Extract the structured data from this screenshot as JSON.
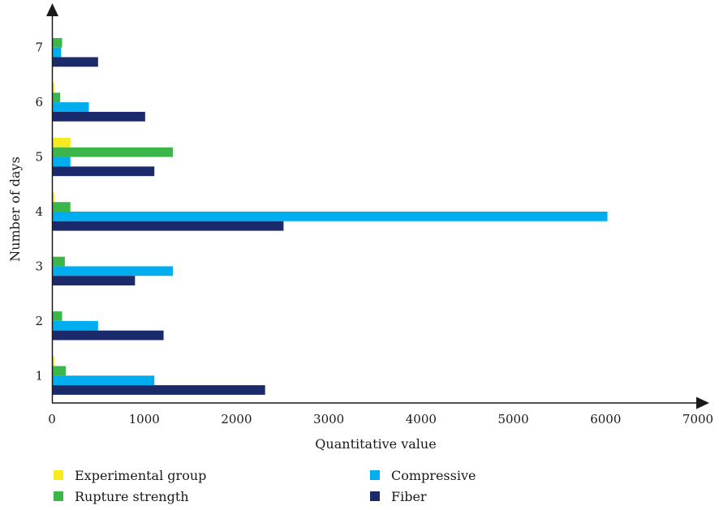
{
  "chart_data": {
    "type": "bar",
    "orientation": "horizontal",
    "categories": [
      "1",
      "2",
      "3",
      "4",
      "5",
      "6",
      "7"
    ],
    "series": [
      {
        "name": "Experimental group",
        "color": "#f7ea1f",
        "values": [
          25,
          0,
          0,
          25,
          200,
          25,
          0
        ]
      },
      {
        "name": "Rupture strength",
        "color": "#3cb54a",
        "values": [
          150,
          110,
          140,
          200,
          1310,
          90,
          110
        ]
      },
      {
        "name": "Compressive",
        "color": "#00aeef",
        "values": [
          1110,
          500,
          1310,
          6020,
          200,
          400,
          100
        ]
      },
      {
        "name": "Fiber",
        "color": "#1b2a6b",
        "values": [
          2310,
          1210,
          900,
          2510,
          1110,
          1010,
          500
        ]
      }
    ],
    "xlabel": "Quantitative value",
    "ylabel": "Number of days",
    "xlim": [
      0,
      7000
    ],
    "xticks": [
      "0",
      "1000",
      "2000",
      "3000",
      "4000",
      "5000",
      "6000",
      "7000"
    ],
    "grid": false,
    "legend_position": "bottom"
  }
}
